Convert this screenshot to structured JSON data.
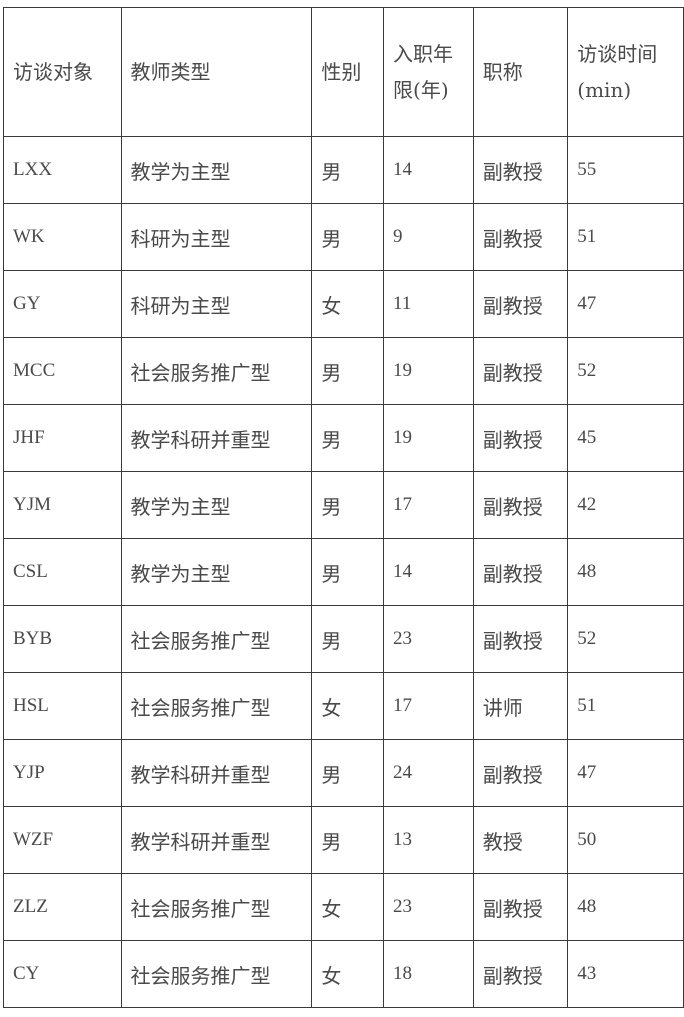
{
  "table": {
    "headers": [
      "访谈对象",
      "教师类型",
      "性别",
      "入职年限(年)",
      "职称",
      "访谈时间(min)"
    ],
    "rows": [
      [
        "LXX",
        "教学为主型",
        "男",
        "14",
        "副教授",
        "55"
      ],
      [
        "WK",
        "科研为主型",
        "男",
        "9",
        "副教授",
        "51"
      ],
      [
        "GY",
        "科研为主型",
        "女",
        "11",
        "副教授",
        "47"
      ],
      [
        "MCC",
        "社会服务推广型",
        "男",
        "19",
        "副教授",
        "52"
      ],
      [
        "JHF",
        "教学科研并重型",
        "男",
        "19",
        "副教授",
        "45"
      ],
      [
        "YJM",
        "教学为主型",
        "男",
        "17",
        "副教授",
        "42"
      ],
      [
        "CSL",
        "教学为主型",
        "男",
        "14",
        "副教授",
        "48"
      ],
      [
        "BYB",
        "社会服务推广型",
        "男",
        "23",
        "副教授",
        "52"
      ],
      [
        "HSL",
        "社会服务推广型",
        "女",
        "17",
        "讲师",
        "51"
      ],
      [
        "YJP",
        "教学科研并重型",
        "男",
        "24",
        "副教授",
        "47"
      ],
      [
        "WZF",
        "教学科研并重型",
        "男",
        "13",
        "教授",
        "50"
      ],
      [
        "ZLZ",
        "社会服务推广型",
        "女",
        "23",
        "副教授",
        "48"
      ],
      [
        "CY",
        "社会服务推广型",
        "女",
        "18",
        "副教授",
        "43"
      ]
    ]
  }
}
